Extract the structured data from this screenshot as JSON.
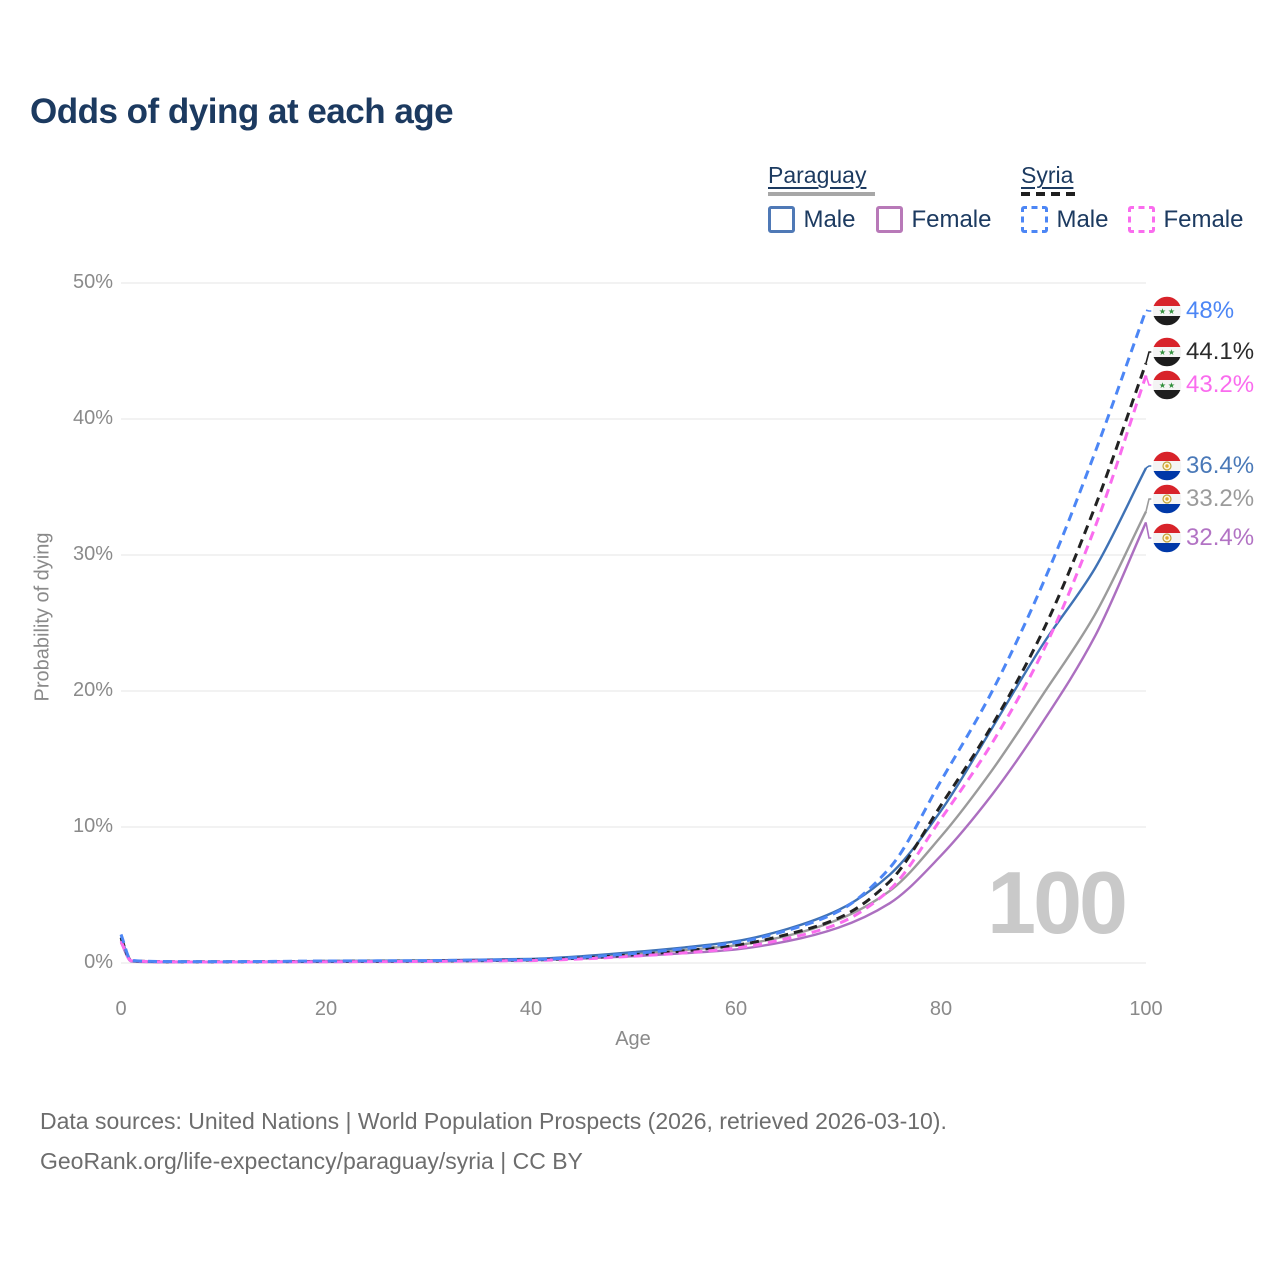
{
  "title": "Odds of dying at each age",
  "legend": {
    "groups": [
      {
        "country": "Paraguay",
        "line_style": "solid",
        "items": [
          {
            "label": "Male"
          },
          {
            "label": "Female"
          }
        ]
      },
      {
        "country": "Syria",
        "line_style": "dashed",
        "items": [
          {
            "label": "Male"
          },
          {
            "label": "Female"
          }
        ]
      }
    ]
  },
  "y_axis": {
    "title": "Probability of dying",
    "ticks": [
      "0%",
      "10%",
      "20%",
      "30%",
      "40%",
      "50%"
    ]
  },
  "x_axis": {
    "title": "Age",
    "ticks": [
      "0",
      "20",
      "40",
      "60",
      "80",
      "100"
    ]
  },
  "watermark": "100",
  "colors": {
    "paraguay_male": "#3f72b5",
    "paraguay_female": "#ac6fc0",
    "paraguay_both": "#9b9b9b",
    "syria_male": "#4c86f5",
    "syria_female": "#fa6cee",
    "syria_both": "#222222",
    "title_navy": "#1c3a60",
    "grid": "#e9e9e9",
    "axis_text": "#8a8a8a",
    "watermark_gray": "#c9c9c9"
  },
  "chart_data": {
    "type": "line",
    "title": "Odds of dying at each age",
    "xlabel": "Age",
    "ylabel": "Probability of dying",
    "xlim": [
      0,
      100
    ],
    "ylim": [
      0,
      50
    ],
    "x_ticks": [
      0,
      20,
      40,
      60,
      80,
      100
    ],
    "y_ticks_pct": [
      0,
      10,
      20,
      30,
      40,
      50
    ],
    "grid": "horizontal-only",
    "age_ticker": "100",
    "ages": [
      0,
      1,
      3,
      5,
      10,
      15,
      20,
      25,
      30,
      35,
      40,
      45,
      50,
      55,
      60,
      65,
      70,
      75,
      80,
      85,
      90,
      95,
      100
    ],
    "series": [
      {
        "id": "paraguay-both",
        "country": "Paraguay",
        "sex": "Both sexes",
        "dashed": false,
        "color": "#9b9b9b",
        "label_color": "#9b9b9b",
        "end_label": "33.2%",
        "end_value": 33.2,
        "flag": "paraguay",
        "values": [
          1.7,
          0.13,
          0.08,
          0.07,
          0.07,
          0.09,
          0.12,
          0.14,
          0.16,
          0.2,
          0.25,
          0.42,
          0.65,
          0.95,
          1.3,
          2.0,
          3.2,
          5.3,
          9.3,
          14.2,
          19.8,
          25.6,
          33.2
        ]
      },
      {
        "id": "paraguay-female",
        "country": "Paraguay",
        "sex": "Female",
        "dashed": false,
        "color": "#ac6fc0",
        "label_color": "#b273c4",
        "end_label": "32.4%",
        "end_value": 32.4,
        "flag": "paraguay",
        "values": [
          1.5,
          0.12,
          0.07,
          0.06,
          0.06,
          0.07,
          0.08,
          0.09,
          0.11,
          0.15,
          0.2,
          0.33,
          0.5,
          0.72,
          1.0,
          1.6,
          2.6,
          4.4,
          7.9,
          12.4,
          17.8,
          24.0,
          32.4
        ]
      },
      {
        "id": "paraguay-male",
        "country": "Paraguay",
        "sex": "Male",
        "dashed": false,
        "color": "#3f72b5",
        "label_color": "#4a79b8",
        "end_label": "36.4%",
        "end_value": 36.4,
        "flag": "paraguay",
        "values": [
          1.9,
          0.15,
          0.09,
          0.08,
          0.08,
          0.1,
          0.15,
          0.17,
          0.19,
          0.24,
          0.3,
          0.5,
          0.8,
          1.15,
          1.6,
          2.5,
          3.9,
          6.5,
          11.2,
          17.3,
          23.5,
          29.0,
          36.4
        ]
      },
      {
        "id": "syria-both",
        "country": "Syria",
        "sex": "Both sexes",
        "dashed": true,
        "color": "#222222",
        "label_color": "#2b2b2b",
        "end_label": "44.1%",
        "end_value": 44.1,
        "flag": "syria",
        "values": [
          1.85,
          0.18,
          0.11,
          0.09,
          0.09,
          0.1,
          0.12,
          0.13,
          0.15,
          0.18,
          0.22,
          0.37,
          0.6,
          0.9,
          1.3,
          2.1,
          3.3,
          6.0,
          11.6,
          17.5,
          24.5,
          33.5,
          44.1
        ]
      },
      {
        "id": "syria-female",
        "country": "Syria",
        "sex": "Female",
        "dashed": true,
        "color": "#fa6cee",
        "label_color": "#fa6cee",
        "end_label": "43.2%",
        "end_value": 43.2,
        "flag": "syria",
        "values": [
          1.6,
          0.16,
          0.1,
          0.08,
          0.07,
          0.08,
          0.09,
          0.1,
          0.12,
          0.15,
          0.18,
          0.3,
          0.5,
          0.75,
          1.1,
          1.8,
          2.9,
          5.4,
          10.6,
          16.2,
          23.0,
          32.0,
          43.2
        ]
      },
      {
        "id": "syria-male",
        "country": "Syria",
        "sex": "Male",
        "dashed": true,
        "color": "#4c86f5",
        "label_color": "#4c86f5",
        "end_label": "48%",
        "end_value": 48,
        "flag": "syria",
        "values": [
          2.1,
          0.2,
          0.12,
          0.1,
          0.1,
          0.12,
          0.15,
          0.16,
          0.18,
          0.21,
          0.25,
          0.42,
          0.7,
          1.05,
          1.5,
          2.4,
          3.8,
          7.0,
          13.4,
          20.0,
          28.0,
          37.5,
          48.0
        ]
      }
    ]
  },
  "footer": {
    "line1": "Data sources: United Nations | World Population Prospects (2026, retrieved 2026-03-10).",
    "line2": "GeoRank.org/life-expectancy/paraguay/syria | CC BY"
  }
}
